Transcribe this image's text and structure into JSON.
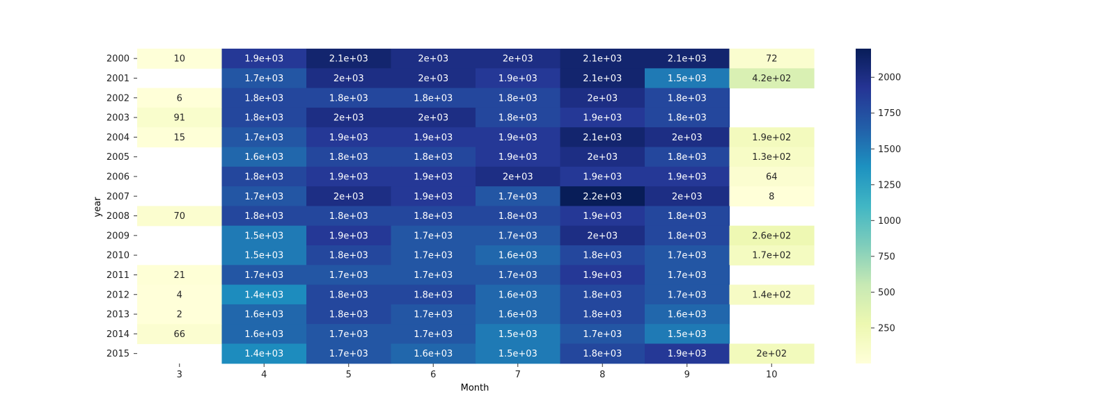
{
  "chart_data": {
    "type": "heatmap",
    "xlabel": "Month",
    "ylabel": "year",
    "x_categories": [
      "3",
      "4",
      "5",
      "6",
      "7",
      "8",
      "9",
      "10"
    ],
    "y_categories": [
      "2000",
      "2001",
      "2002",
      "2003",
      "2004",
      "2005",
      "2006",
      "2007",
      "2008",
      "2009",
      "2010",
      "2011",
      "2012",
      "2013",
      "2014",
      "2015"
    ],
    "values": [
      [
        10,
        1900,
        2100,
        2000,
        2000,
        2100,
        2100,
        72
      ],
      [
        null,
        1700,
        2000,
        2000,
        1900,
        2100,
        1500,
        420
      ],
      [
        6,
        1800,
        1800,
        1800,
        1800,
        2000,
        1800,
        null
      ],
      [
        91,
        1800,
        2000,
        2000,
        1800,
        1900,
        1800,
        null
      ],
      [
        15,
        1700,
        1900,
        1900,
        1900,
        2100,
        2000,
        190
      ],
      [
        null,
        1600,
        1800,
        1800,
        1900,
        2000,
        1800,
        130
      ],
      [
        null,
        1800,
        1900,
        1900,
        2000,
        1900,
        1900,
        64
      ],
      [
        null,
        1700,
        2000,
        1900,
        1700,
        2200,
        2000,
        8
      ],
      [
        70,
        1800,
        1800,
        1800,
        1800,
        1900,
        1800,
        null
      ],
      [
        null,
        1500,
        1900,
        1700,
        1700,
        2000,
        1800,
        260
      ],
      [
        null,
        1500,
        1800,
        1700,
        1600,
        1800,
        1700,
        170
      ],
      [
        21,
        1700,
        1700,
        1700,
        1700,
        1900,
        1700,
        null
      ],
      [
        4,
        1400,
        1800,
        1800,
        1600,
        1800,
        1700,
        140
      ],
      [
        2,
        1600,
        1800,
        1700,
        1600,
        1800,
        1600,
        null
      ],
      [
        66,
        1600,
        1700,
        1700,
        1500,
        1700,
        1500,
        null
      ],
      [
        null,
        1400,
        1700,
        1600,
        1500,
        1800,
        1900,
        200
      ]
    ],
    "annotations": [
      [
        "10",
        "1.9e+03",
        "2.1e+03",
        "2e+03",
        "2e+03",
        "2.1e+03",
        "2.1e+03",
        "72"
      ],
      [
        "",
        "1.7e+03",
        "2e+03",
        "2e+03",
        "1.9e+03",
        "2.1e+03",
        "1.5e+03",
        "4.2e+02"
      ],
      [
        "6",
        "1.8e+03",
        "1.8e+03",
        "1.8e+03",
        "1.8e+03",
        "2e+03",
        "1.8e+03",
        ""
      ],
      [
        "91",
        "1.8e+03",
        "2e+03",
        "2e+03",
        "1.8e+03",
        "1.9e+03",
        "1.8e+03",
        ""
      ],
      [
        "15",
        "1.7e+03",
        "1.9e+03",
        "1.9e+03",
        "1.9e+03",
        "2.1e+03",
        "2e+03",
        "1.9e+02"
      ],
      [
        "",
        "1.6e+03",
        "1.8e+03",
        "1.8e+03",
        "1.9e+03",
        "2e+03",
        "1.8e+03",
        "1.3e+02"
      ],
      [
        "",
        "1.8e+03",
        "1.9e+03",
        "1.9e+03",
        "2e+03",
        "1.9e+03",
        "1.9e+03",
        "64"
      ],
      [
        "",
        "1.7e+03",
        "2e+03",
        "1.9e+03",
        "1.7e+03",
        "2.2e+03",
        "2e+03",
        "8"
      ],
      [
        "70",
        "1.8e+03",
        "1.8e+03",
        "1.8e+03",
        "1.8e+03",
        "1.9e+03",
        "1.8e+03",
        ""
      ],
      [
        "",
        "1.5e+03",
        "1.9e+03",
        "1.7e+03",
        "1.7e+03",
        "2e+03",
        "1.8e+03",
        "2.6e+02"
      ],
      [
        "",
        "1.5e+03",
        "1.8e+03",
        "1.7e+03",
        "1.6e+03",
        "1.8e+03",
        "1.7e+03",
        "1.7e+02"
      ],
      [
        "21",
        "1.7e+03",
        "1.7e+03",
        "1.7e+03",
        "1.7e+03",
        "1.9e+03",
        "1.7e+03",
        ""
      ],
      [
        "4",
        "1.4e+03",
        "1.8e+03",
        "1.8e+03",
        "1.6e+03",
        "1.8e+03",
        "1.7e+03",
        "1.4e+02"
      ],
      [
        "2",
        "1.6e+03",
        "1.8e+03",
        "1.7e+03",
        "1.6e+03",
        "1.8e+03",
        "1.6e+03",
        ""
      ],
      [
        "66",
        "1.6e+03",
        "1.7e+03",
        "1.7e+03",
        "1.5e+03",
        "1.7e+03",
        "1.5e+03",
        ""
      ],
      [
        "",
        "1.4e+03",
        "1.7e+03",
        "1.6e+03",
        "1.5e+03",
        "1.8e+03",
        "1.9e+03",
        "2e+02"
      ]
    ],
    "colorbar": {
      "range": [
        2,
        2200
      ],
      "ticks": [
        250,
        500,
        750,
        1000,
        1250,
        1500,
        1750,
        2000
      ],
      "colormap": "YlGnBu",
      "colors": [
        "#ffffd9",
        "#edf8b1",
        "#c7e9b4",
        "#7fcdbb",
        "#41b6c4",
        "#1d91c0",
        "#225ea8",
        "#253494",
        "#081d58"
      ]
    },
    "grid": false
  }
}
